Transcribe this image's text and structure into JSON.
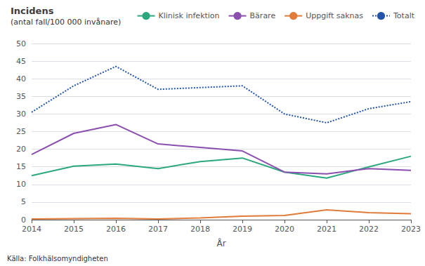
{
  "chart_data": {
    "type": "line",
    "title": "Incidens",
    "subtitle": "(antal fall/100 000 invånare)",
    "xlabel": "År",
    "annotations": [
      "Källa: Folkhälsomyndigheten"
    ],
    "categories": [
      "2014",
      "2015",
      "2016",
      "2017",
      "2018",
      "2019",
      "2020",
      "2021",
      "2022",
      "2023"
    ],
    "series": [
      {
        "name": "Klinisk infektion",
        "color": "#2ca87f",
        "line_style": "solid",
        "values": [
          12.5,
          15.2,
          15.8,
          14.5,
          16.5,
          17.5,
          13.5,
          11.8,
          15.0,
          18.0
        ]
      },
      {
        "name": "Bärare",
        "color": "#8B4FAF",
        "line_style": "solid",
        "values": [
          18.5,
          24.5,
          27.0,
          21.5,
          20.5,
          19.5,
          13.5,
          13.0,
          14.5,
          14.0
        ]
      },
      {
        "name": "Uppgift saknas",
        "color": "#E07B39",
        "line_style": "solid",
        "values": [
          0.2,
          0.3,
          0.4,
          0.2,
          0.5,
          1.0,
          1.2,
          2.8,
          2.0,
          1.7
        ]
      },
      {
        "name": "Totalt",
        "color": "#2255AA",
        "line_style": "dotted",
        "values": [
          30.5,
          38.0,
          43.5,
          37.0,
          37.5,
          38.0,
          30.0,
          27.5,
          31.5,
          33.5
        ]
      }
    ],
    "ylim": [
      0,
      50
    ],
    "yticks": [
      0,
      5,
      10,
      15,
      20,
      25,
      30,
      35,
      40,
      45,
      50
    ],
    "grid": true,
    "legend": "top"
  }
}
